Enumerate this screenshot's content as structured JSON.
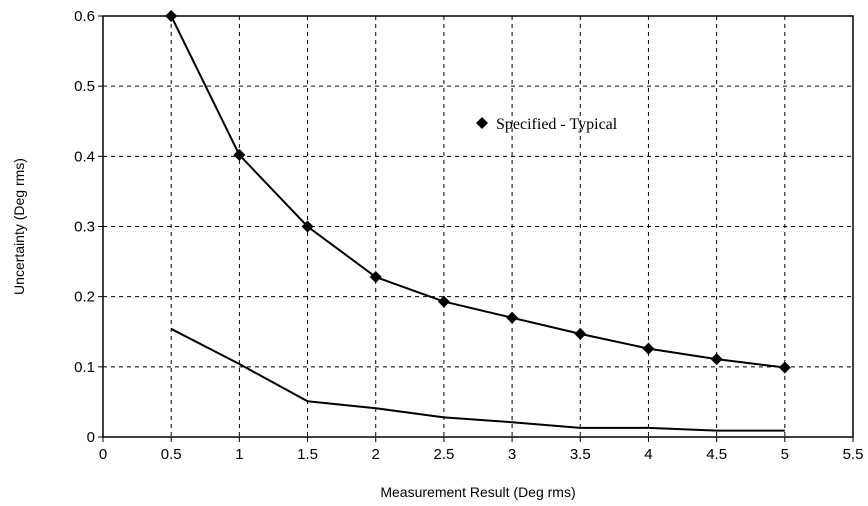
{
  "chart_data": {
    "type": "line",
    "title": "",
    "xlabel": "Measurement Result (Deg rms)",
    "ylabel": "Uncertainty (Deg rms)",
    "xlim": [
      0,
      5.5
    ],
    "ylim": [
      0,
      0.6
    ],
    "x_ticks": [
      "0",
      "0.5",
      "1",
      "1.5",
      "2",
      "2.5",
      "3",
      "3.5",
      "4",
      "4.5",
      "5",
      "5.5"
    ],
    "y_ticks": [
      "0",
      "0.1",
      "0.2",
      "0.3",
      "0.4",
      "0.5",
      "0.6"
    ],
    "grid": true,
    "legend_position": "upper-middle",
    "series": [
      {
        "name": "Specified - Typical",
        "marker": "diamond",
        "x": [
          0.5,
          1,
          1.5,
          2,
          2.5,
          3,
          3.5,
          4,
          4.5,
          5
        ],
        "values": [
          0.6,
          0.402,
          0.3,
          0.228,
          0.193,
          0.17,
          0.147,
          0.126,
          0.111,
          0.099
        ]
      },
      {
        "marker": "none",
        "x": [
          0.5,
          1,
          1.5,
          2,
          2.5,
          3,
          3.5,
          4,
          4.5,
          5
        ],
        "values": [
          0.154,
          0.104,
          0.051,
          0.041,
          0.028,
          0.021,
          0.013,
          0.013,
          0.009,
          0.009
        ]
      }
    ]
  }
}
